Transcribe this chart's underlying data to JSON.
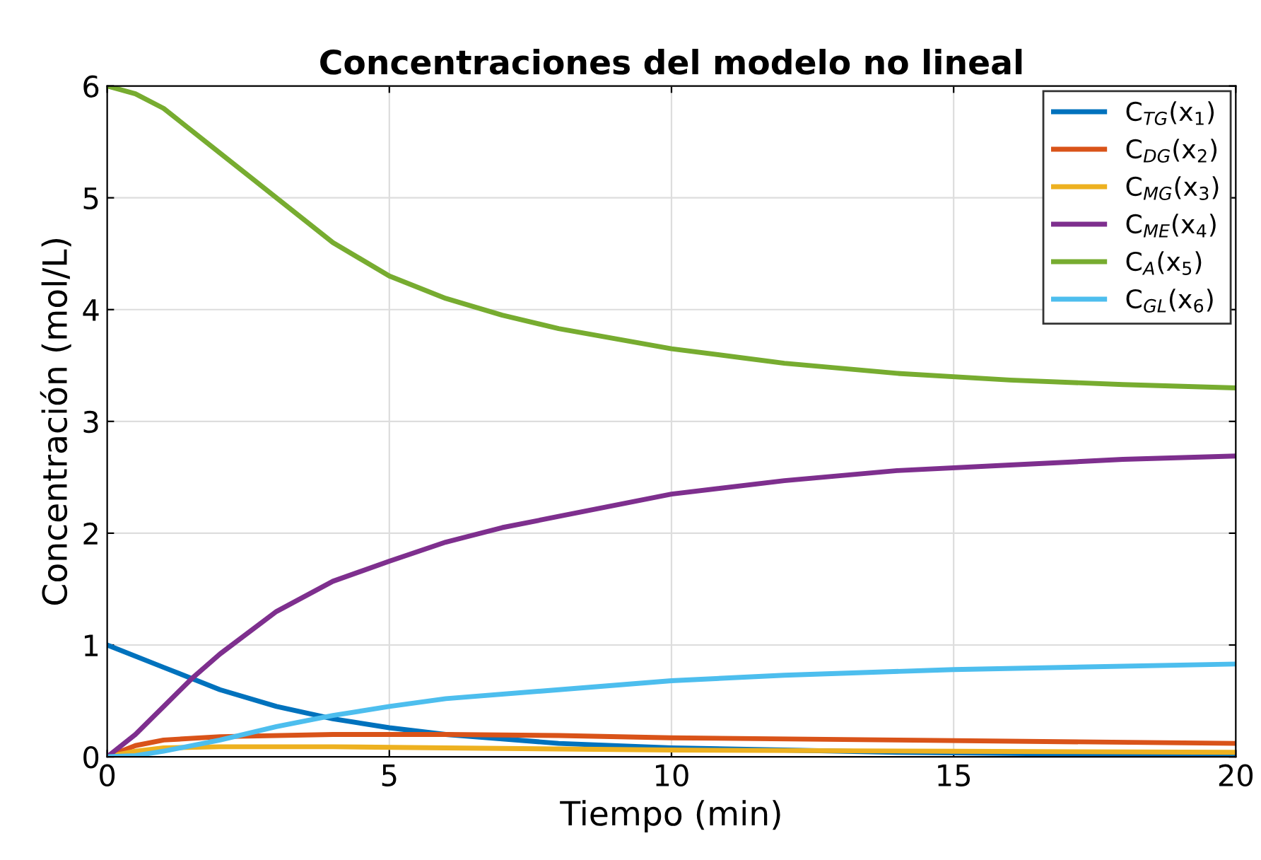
{
  "chart_data": {
    "type": "line",
    "title": "Concentraciones del modelo no lineal",
    "xlabel": "Tiempo (min)",
    "ylabel": "Concentración (mol/L)",
    "xlim": [
      0,
      20
    ],
    "xticks": [
      0,
      5,
      10,
      15,
      20
    ],
    "ylim": [
      0,
      6
    ],
    "yticks": [
      0,
      1,
      2,
      3,
      4,
      5,
      6
    ],
    "grid": true,
    "legend": "top right",
    "series": [
      {
        "name": "C$_{TG}$(x$_{1}$)",
        "color": "#0072bd",
        "x": [
          0,
          1,
          2,
          3,
          4,
          5,
          6,
          7,
          8,
          10,
          12,
          14,
          16,
          18,
          20
        ],
        "values": [
          1,
          0.8,
          0.6,
          0.45,
          0.34,
          0.26,
          0.2,
          0.16,
          0.12,
          0.08,
          0.06,
          0.04,
          0.03,
          0.02,
          0.015
        ]
      },
      {
        "name": "C$_{DG}$(x$_{2}$)",
        "color": "#d95319",
        "x": [
          0,
          0.5,
          1,
          2,
          4,
          6,
          8,
          10,
          14,
          20
        ],
        "values": [
          0,
          0.1,
          0.15,
          0.18,
          0.2,
          0.2,
          0.19,
          0.17,
          0.15,
          0.12
        ]
      },
      {
        "name": "C$_{MG}$(x$_{3}$)",
        "color": "#edb120",
        "x": [
          0,
          0.5,
          1,
          2,
          4,
          6,
          10,
          15,
          20
        ],
        "values": [
          0,
          0.05,
          0.08,
          0.09,
          0.09,
          0.08,
          0.06,
          0.05,
          0.04
        ]
      },
      {
        "name": "C$_{ME}$(x$_{4}$)",
        "color": "#7e2f8e",
        "x": [
          0,
          0.5,
          1,
          1.5,
          2,
          3,
          4,
          5,
          6,
          7,
          8,
          10,
          12,
          14,
          16,
          18,
          20
        ],
        "values": [
          0,
          0.2,
          0.45,
          0.7,
          0.92,
          1.3,
          1.57,
          1.75,
          1.92,
          2.05,
          2.15,
          2.35,
          2.47,
          2.56,
          2.61,
          2.66,
          2.69
        ]
      },
      {
        "name": "C$_{A}$(x$_{5}$)",
        "color": "#77ac30",
        "x": [
          0,
          0.5,
          1,
          2,
          3,
          4,
          5,
          6,
          7,
          8,
          10,
          12,
          14,
          16,
          18,
          20
        ],
        "values": [
          6,
          5.93,
          5.8,
          5.4,
          5.0,
          4.6,
          4.3,
          4.1,
          3.95,
          3.83,
          3.65,
          3.52,
          3.43,
          3.37,
          3.33,
          3.3
        ]
      },
      {
        "name": "C$_{GL}$(x$_{6}$)",
        "color": "#4dbeee",
        "x": [
          0,
          0.5,
          1,
          2,
          3,
          4,
          5,
          6,
          8,
          10,
          12,
          15,
          20
        ],
        "values": [
          0,
          0.01,
          0.05,
          0.15,
          0.27,
          0.37,
          0.45,
          0.52,
          0.6,
          0.68,
          0.73,
          0.78,
          0.83
        ]
      }
    ]
  }
}
